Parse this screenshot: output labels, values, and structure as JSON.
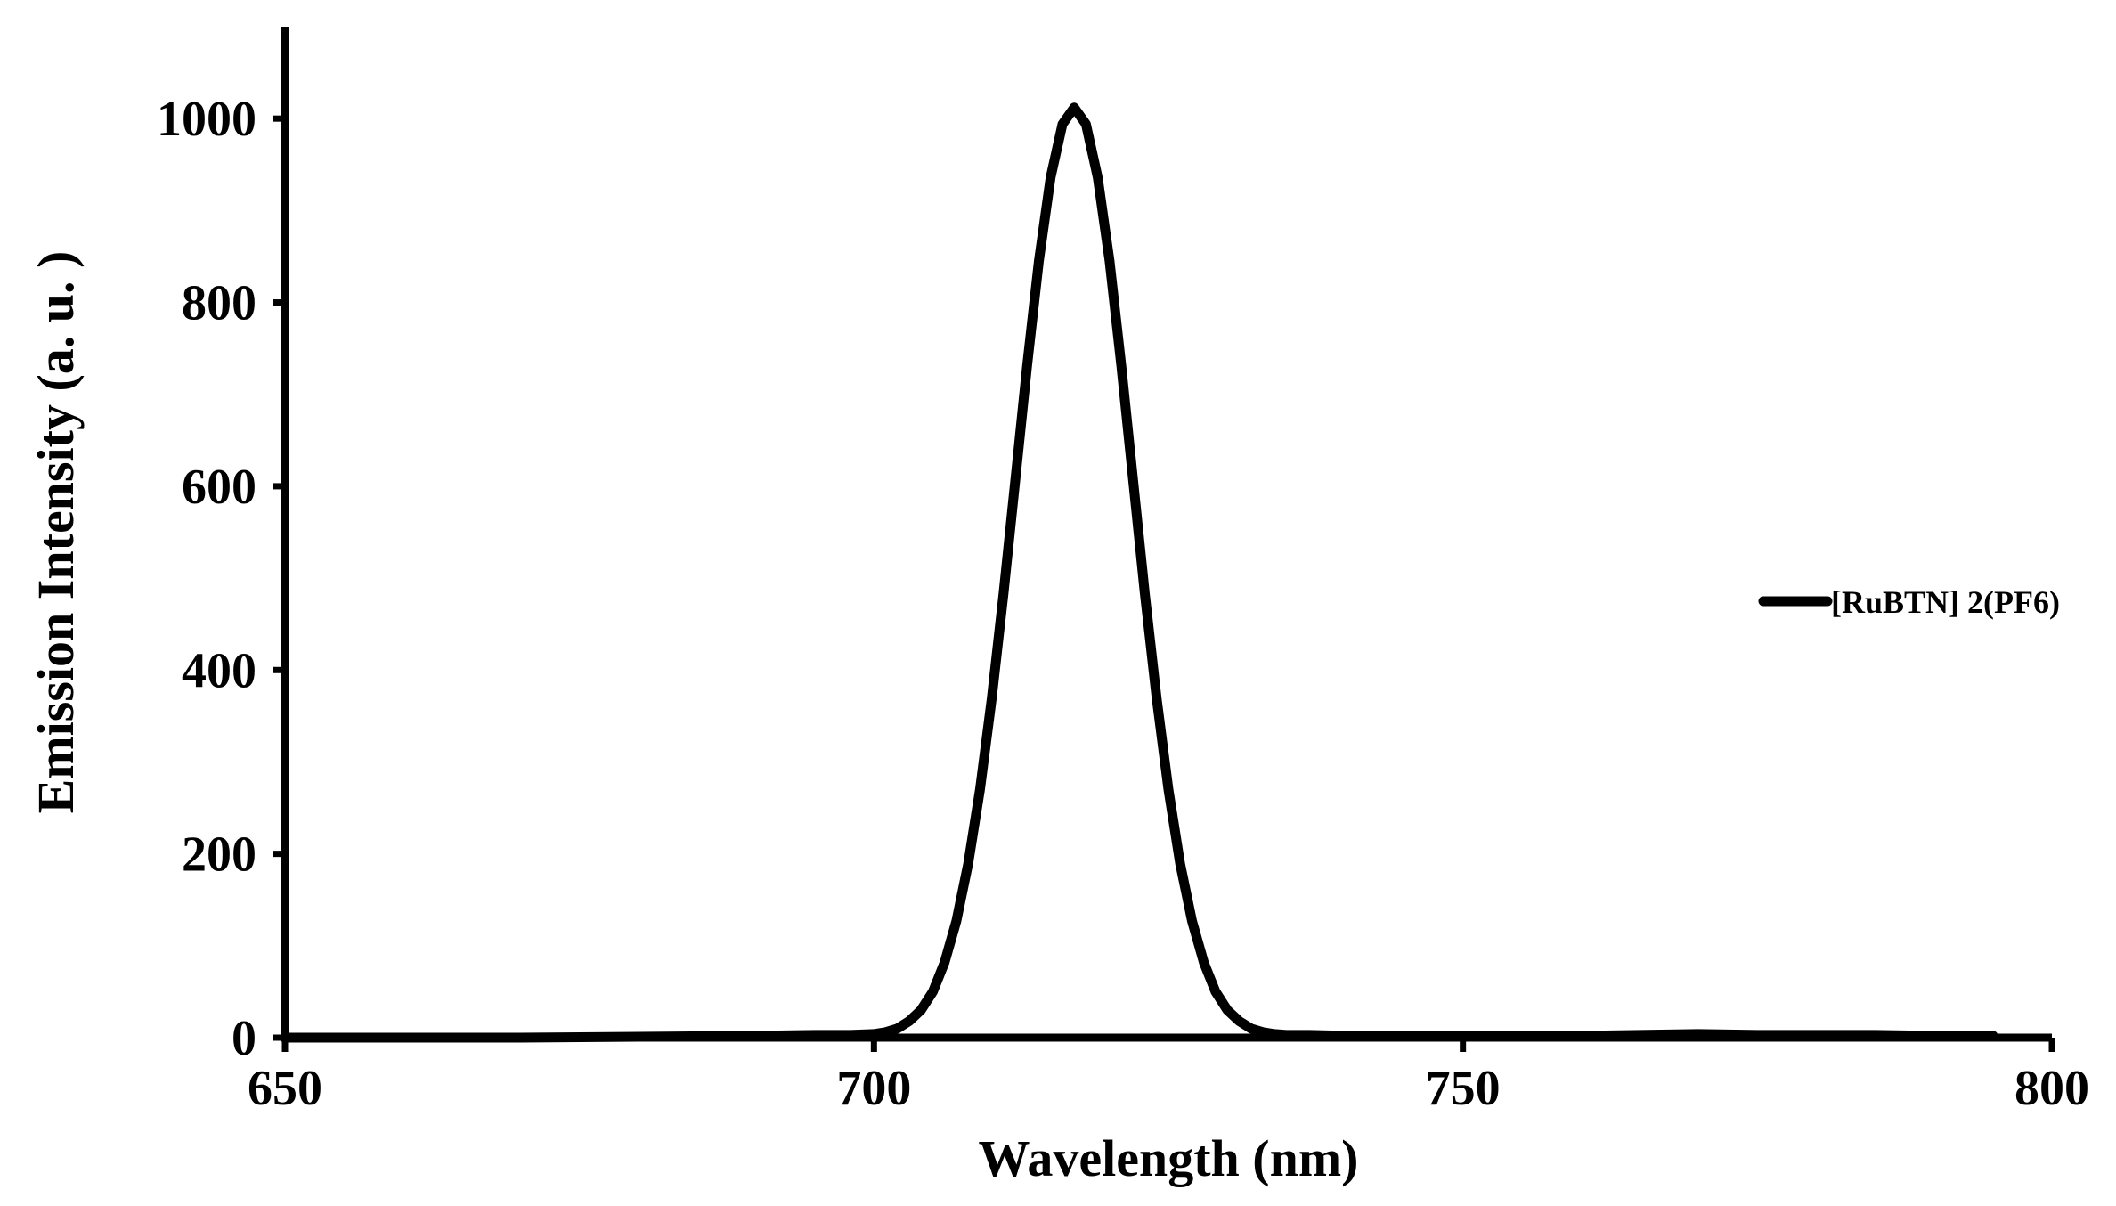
{
  "chart_data": {
    "type": "line",
    "title": "",
    "xlabel": "Wavelength (nm)",
    "ylabel": "Emission Intensity (a. u. )",
    "xlim": [
      650,
      800
    ],
    "ylim": [
      0,
      1100
    ],
    "xticks": [
      650,
      700,
      750,
      800
    ],
    "yticks": [
      0,
      200,
      400,
      600,
      800,
      1000
    ],
    "grid": false,
    "legend_position": "right",
    "line_color": "#000000",
    "series": [
      {
        "name": "[RuBTN] 2(PF6)",
        "x": [
          650,
          660,
          670,
          680,
          690,
          695,
          698,
          700,
          701,
          702,
          703,
          704,
          705,
          706,
          707,
          708,
          709,
          710,
          711,
          712,
          713,
          714,
          715,
          716,
          717,
          718,
          719,
          720,
          721,
          722,
          723,
          724,
          725,
          726,
          727,
          728,
          729,
          730,
          731,
          732,
          733,
          734,
          735,
          737,
          740,
          745,
          750,
          755,
          760,
          765,
          770,
          775,
          780,
          785,
          790,
          795
        ],
        "y": [
          0,
          0,
          0,
          1,
          2,
          3,
          3,
          4,
          6,
          10,
          18,
          30,
          50,
          82,
          127,
          189,
          270,
          369,
          483,
          607,
          731,
          845,
          936,
          994,
          1012,
          994,
          936,
          845,
          731,
          607,
          483,
          369,
          270,
          189,
          127,
          82,
          50,
          30,
          18,
          10,
          6,
          4,
          3,
          3,
          2,
          2,
          2,
          2,
          2,
          3,
          4,
          3,
          3,
          3,
          2,
          2
        ]
      }
    ]
  }
}
